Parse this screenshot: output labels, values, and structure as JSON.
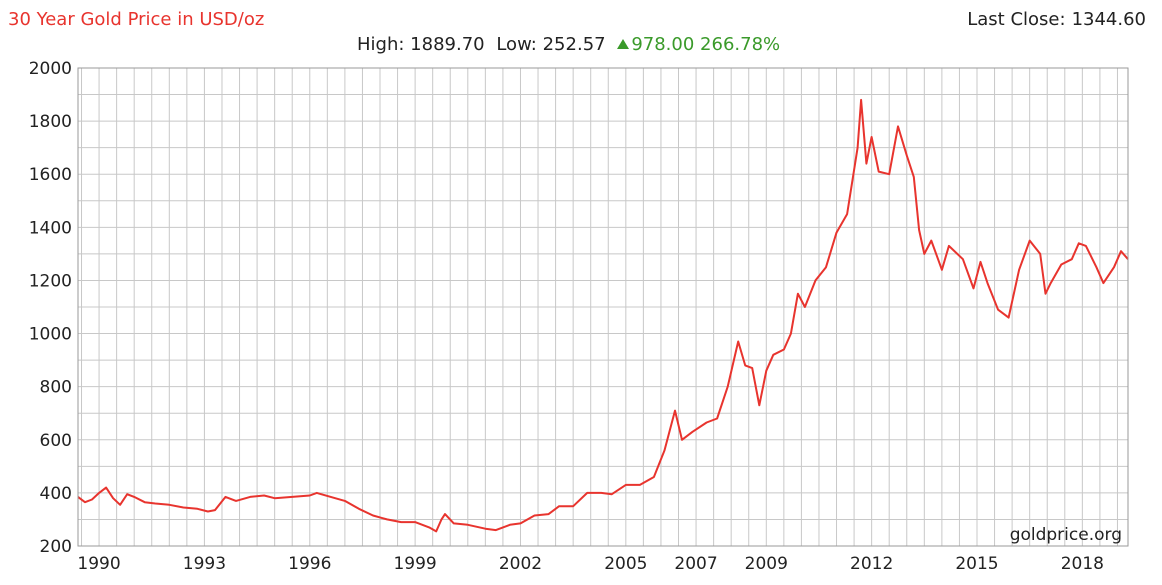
{
  "header": {
    "title": "30 Year Gold Price in USD/oz",
    "last_close_label": "Last Close:",
    "last_close_value": "1344.60",
    "high_label": "High:",
    "high_value": "1889.70",
    "low_label": "Low:",
    "low_value": "252.57",
    "change_value": "978.00",
    "change_pct": "266.78%",
    "watermark": "goldprice.org"
  },
  "colors": {
    "line": "#e8342e",
    "grid": "#c8c8c8",
    "up": "#3a9a2a"
  },
  "chart_data": {
    "type": "line",
    "title": "30 Year Gold Price in USD/oz",
    "xlabel": "",
    "ylabel": "",
    "ylim": [
      200,
      2000
    ],
    "xlim": [
      1989.4,
      2019.3
    ],
    "grid": true,
    "legend": "none",
    "yticks": [
      "2000",
      "1800",
      "1600",
      "1400",
      "1200",
      "1000",
      "800",
      "600",
      "400",
      "200"
    ],
    "xticks": [
      {
        "label": "1990",
        "x": 1990
      },
      {
        "label": "1993",
        "x": 1993
      },
      {
        "label": "1996",
        "x": 1996
      },
      {
        "label": "1999",
        "x": 1999
      },
      {
        "label": "2002",
        "x": 2002
      },
      {
        "label": "2005",
        "x": 2005
      },
      {
        "label": "2007",
        "x": 2007
      },
      {
        "label": "2009",
        "x": 2009
      },
      {
        "label": "2012",
        "x": 2012
      },
      {
        "label": "2015",
        "x": 2015
      },
      {
        "label": "2018",
        "x": 2018
      }
    ],
    "series": [
      {
        "values": [
          [
            1989.4,
            385
          ],
          [
            1989.6,
            365
          ],
          [
            1989.8,
            375
          ],
          [
            1990.0,
            400
          ],
          [
            1990.2,
            420
          ],
          [
            1990.4,
            380
          ],
          [
            1990.6,
            355
          ],
          [
            1990.8,
            395
          ],
          [
            1991.0,
            385
          ],
          [
            1991.3,
            365
          ],
          [
            1991.6,
            360
          ],
          [
            1992.0,
            355
          ],
          [
            1992.4,
            345
          ],
          [
            1992.8,
            340
          ],
          [
            1993.1,
            330
          ],
          [
            1993.3,
            335
          ],
          [
            1993.6,
            385
          ],
          [
            1993.9,
            370
          ],
          [
            1994.3,
            385
          ],
          [
            1994.7,
            390
          ],
          [
            1995.0,
            380
          ],
          [
            1995.5,
            385
          ],
          [
            1996.0,
            390
          ],
          [
            1996.2,
            400
          ],
          [
            1996.6,
            385
          ],
          [
            1997.0,
            370
          ],
          [
            1997.4,
            340
          ],
          [
            1997.8,
            315
          ],
          [
            1998.2,
            300
          ],
          [
            1998.6,
            290
          ],
          [
            1999.0,
            290
          ],
          [
            1999.4,
            270
          ],
          [
            1999.6,
            255
          ],
          [
            1999.75,
            300
          ],
          [
            1999.85,
            320
          ],
          [
            2000.1,
            285
          ],
          [
            2000.5,
            280
          ],
          [
            2001.0,
            265
          ],
          [
            2001.3,
            260
          ],
          [
            2001.7,
            280
          ],
          [
            2002.0,
            285
          ],
          [
            2002.4,
            315
          ],
          [
            2002.8,
            320
          ],
          [
            2003.1,
            350
          ],
          [
            2003.5,
            350
          ],
          [
            2003.9,
            400
          ],
          [
            2004.3,
            400
          ],
          [
            2004.6,
            395
          ],
          [
            2005.0,
            430
          ],
          [
            2005.4,
            430
          ],
          [
            2005.8,
            460
          ],
          [
            2006.1,
            560
          ],
          [
            2006.4,
            710
          ],
          [
            2006.6,
            600
          ],
          [
            2006.9,
            630
          ],
          [
            2007.3,
            665
          ],
          [
            2007.6,
            680
          ],
          [
            2007.9,
            800
          ],
          [
            2008.2,
            970
          ],
          [
            2008.4,
            880
          ],
          [
            2008.6,
            870
          ],
          [
            2008.8,
            730
          ],
          [
            2009.0,
            860
          ],
          [
            2009.2,
            920
          ],
          [
            2009.5,
            940
          ],
          [
            2009.7,
            1000
          ],
          [
            2009.9,
            1150
          ],
          [
            2010.1,
            1100
          ],
          [
            2010.4,
            1200
          ],
          [
            2010.7,
            1250
          ],
          [
            2011.0,
            1380
          ],
          [
            2011.3,
            1450
          ],
          [
            2011.6,
            1700
          ],
          [
            2011.7,
            1880
          ],
          [
            2011.85,
            1640
          ],
          [
            2012.0,
            1740
          ],
          [
            2012.2,
            1610
          ],
          [
            2012.5,
            1600
          ],
          [
            2012.75,
            1780
          ],
          [
            2013.0,
            1670
          ],
          [
            2013.2,
            1590
          ],
          [
            2013.35,
            1390
          ],
          [
            2013.5,
            1300
          ],
          [
            2013.7,
            1350
          ],
          [
            2014.0,
            1240
          ],
          [
            2014.2,
            1330
          ],
          [
            2014.6,
            1280
          ],
          [
            2014.9,
            1170
          ],
          [
            2015.1,
            1270
          ],
          [
            2015.3,
            1190
          ],
          [
            2015.6,
            1090
          ],
          [
            2015.9,
            1060
          ],
          [
            2016.2,
            1240
          ],
          [
            2016.5,
            1350
          ],
          [
            2016.8,
            1300
          ],
          [
            2016.95,
            1150
          ],
          [
            2017.1,
            1190
          ],
          [
            2017.4,
            1260
          ],
          [
            2017.7,
            1280
          ],
          [
            2017.9,
            1340
          ],
          [
            2018.1,
            1330
          ],
          [
            2018.4,
            1250
          ],
          [
            2018.6,
            1190
          ],
          [
            2018.9,
            1250
          ],
          [
            2019.1,
            1310
          ],
          [
            2019.3,
            1280
          ]
        ]
      }
    ]
  }
}
